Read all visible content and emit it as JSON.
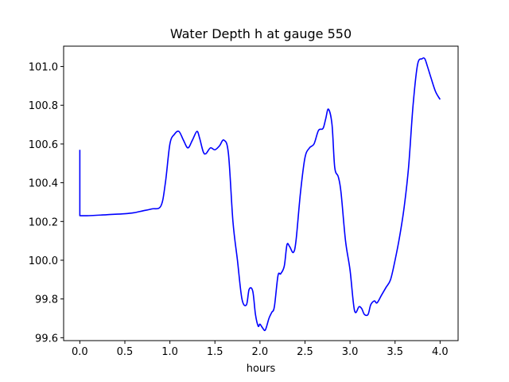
{
  "chart_data": {
    "type": "line",
    "title": "Water Depth h at gauge 550",
    "xlabel": "hours",
    "ylabel": "",
    "xlim": [
      -0.18,
      4.2
    ],
    "ylim": [
      99.585,
      101.105
    ],
    "x_ticks": [
      0.0,
      0.5,
      1.0,
      1.5,
      2.0,
      2.5,
      3.0,
      3.5,
      4.0
    ],
    "x_tick_labels": [
      "0.0",
      "0.5",
      "1.0",
      "1.5",
      "2.0",
      "2.5",
      "3.0",
      "3.5",
      "4.0"
    ],
    "y_ticks": [
      99.6,
      99.8,
      100.0,
      100.2,
      100.4,
      100.6,
      100.8,
      101.0
    ],
    "y_tick_labels": [
      "99.6",
      "99.8",
      "100.0",
      "100.2",
      "100.4",
      "100.6",
      "100.8",
      "101.0"
    ],
    "grid": false,
    "legend": "none",
    "series": [
      {
        "color": "#0000ff",
        "x": [
          0.0,
          0.0,
          0.1,
          0.3,
          0.5,
          0.6,
          0.7,
          0.8,
          0.9,
          0.95,
          1.0,
          1.05,
          1.1,
          1.15,
          1.2,
          1.25,
          1.3,
          1.33,
          1.37,
          1.4,
          1.45,
          1.5,
          1.55,
          1.6,
          1.65,
          1.7,
          1.75,
          1.8,
          1.85,
          1.88,
          1.92,
          1.95,
          1.98,
          2.0,
          2.03,
          2.06,
          2.1,
          2.13,
          2.16,
          2.2,
          2.23,
          2.27,
          2.3,
          2.33,
          2.37,
          2.4,
          2.45,
          2.5,
          2.55,
          2.6,
          2.65,
          2.7,
          2.73,
          2.76,
          2.8,
          2.83,
          2.87,
          2.9,
          2.95,
          3.0,
          3.05,
          3.1,
          3.13,
          3.16,
          3.2,
          3.23,
          3.27,
          3.3,
          3.35,
          3.4,
          3.45,
          3.5,
          3.55,
          3.6,
          3.65,
          3.7,
          3.75,
          3.8,
          3.83,
          3.86,
          3.9,
          3.95,
          4.0
        ],
        "y": [
          100.57,
          100.23,
          100.23,
          100.235,
          100.24,
          100.245,
          100.255,
          100.265,
          100.28,
          100.4,
          100.6,
          100.65,
          100.665,
          100.62,
          100.58,
          100.62,
          100.665,
          100.63,
          100.56,
          100.55,
          100.58,
          100.57,
          100.59,
          100.62,
          100.55,
          100.2,
          100.0,
          99.8,
          99.77,
          99.85,
          99.84,
          99.72,
          99.66,
          99.67,
          99.65,
          99.64,
          99.7,
          99.73,
          99.76,
          99.92,
          99.93,
          99.97,
          100.08,
          100.07,
          100.04,
          100.1,
          100.35,
          100.53,
          100.58,
          100.6,
          100.67,
          100.68,
          100.73,
          100.78,
          100.7,
          100.48,
          100.43,
          100.35,
          100.1,
          99.95,
          99.74,
          99.76,
          99.75,
          99.72,
          99.72,
          99.77,
          99.79,
          99.78,
          99.82,
          99.86,
          99.9,
          100.0,
          100.12,
          100.27,
          100.48,
          100.8,
          101.01,
          101.04,
          101.04,
          101.0,
          100.94,
          100.87,
          100.83
        ]
      }
    ]
  }
}
